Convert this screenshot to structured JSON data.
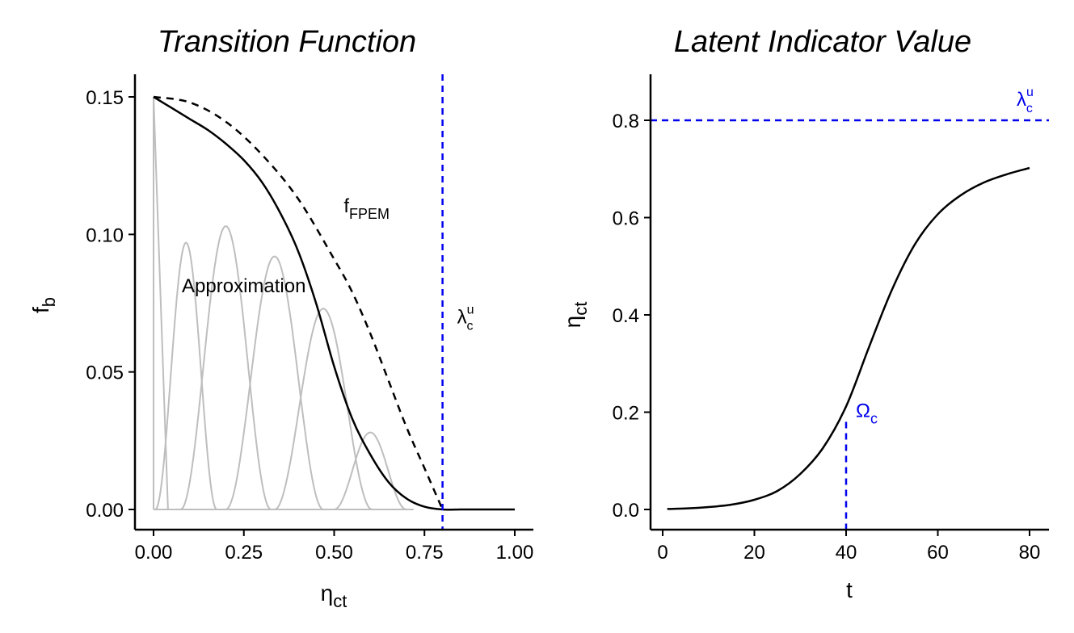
{
  "chart_data": [
    {
      "type": "line",
      "title": "Transition Function",
      "xlabel": {
        "main": "η",
        "sub": "ct"
      },
      "ylabel": {
        "main": "f",
        "sub": "b"
      },
      "xlim": [
        0,
        1
      ],
      "ylim": [
        0,
        0.15
      ],
      "xticks": [
        0,
        0.25,
        0.5,
        0.75,
        1
      ],
      "xtick_labels": [
        "0.00",
        "0.25",
        "0.50",
        "0.75",
        "1.00"
      ],
      "yticks": [
        0,
        0.05,
        0.1,
        0.15
      ],
      "ytick_labels": [
        "0.00",
        "0.05",
        "0.10",
        "0.15"
      ],
      "grid": false,
      "colors": {
        "curve": "#000000",
        "basis": "#bebebe",
        "marker": "#0000ee"
      },
      "series": [
        {
          "style": "solid",
          "x": [
            0,
            0.05,
            0.1,
            0.15,
            0.2,
            0.25,
            0.3,
            0.35,
            0.4,
            0.45,
            0.5,
            0.55,
            0.6,
            0.65,
            0.7,
            0.75,
            0.8,
            0.85,
            0.9,
            0.95,
            1.0
          ],
          "y": [
            0.15,
            0.146,
            0.142,
            0.138,
            0.133,
            0.127,
            0.119,
            0.108,
            0.094,
            0.075,
            0.052,
            0.033,
            0.02,
            0.01,
            0.004,
            0.001,
            0,
            0,
            0,
            0,
            0
          ]
        },
        {
          "style": "dashed",
          "x": [
            0,
            0.1,
            0.2,
            0.3,
            0.4,
            0.5,
            0.55,
            0.6,
            0.65,
            0.7,
            0.75,
            0.8
          ],
          "y": [
            0.15,
            0.148,
            0.141,
            0.129,
            0.113,
            0.091,
            0.079,
            0.064,
            0.047,
            0.03,
            0.015,
            0
          ]
        },
        {
          "style": "basis",
          "peaks": [
            {
              "x": 0,
              "y": 0.15
            },
            {
              "x": 0.09,
              "y": 0.097
            },
            {
              "x": 0.2,
              "y": 0.103
            },
            {
              "x": 0.335,
              "y": 0.092
            },
            {
              "x": 0.47,
              "y": 0.073
            },
            {
              "x": 0.6,
              "y": 0.028
            }
          ]
        }
      ],
      "vline": {
        "x": 0.8,
        "style": "dashed",
        "label": {
          "main": "λ",
          "sup": "u",
          "sub": "c"
        }
      },
      "annotations": [
        {
          "text": "Approximation",
          "x": 0.25,
          "y": 0.079
        },
        {
          "main": "f",
          "sub": "FPEM",
          "x": 0.54,
          "y": 0.108
        }
      ]
    },
    {
      "type": "line",
      "title": "Latent Indicator Value",
      "xlabel": {
        "main": "t",
        "sub": ""
      },
      "ylabel": {
        "main": "η",
        "sub": "ct"
      },
      "xlim": [
        0,
        80
      ],
      "ylim": [
        0,
        0.8
      ],
      "xticks": [
        0,
        20,
        40,
        60,
        80
      ],
      "xtick_labels": [
        "0",
        "20",
        "40",
        "60",
        "80"
      ],
      "yticks": [
        0,
        0.2,
        0.4,
        0.6,
        0.8
      ],
      "ytick_labels": [
        "0.0",
        "0.2",
        "0.4",
        "0.6",
        "0.8"
      ],
      "grid": false,
      "colors": {
        "curve": "#000000",
        "marker": "#0000ee"
      },
      "series": [
        {
          "style": "solid",
          "x": [
            1,
            5,
            10,
            15,
            20,
            25,
            30,
            35,
            40,
            45,
            50,
            55,
            60,
            65,
            70,
            75,
            80
          ],
          "y": [
            0.001,
            0.002,
            0.005,
            0.01,
            0.02,
            0.038,
            0.073,
            0.127,
            0.212,
            0.334,
            0.452,
            0.545,
            0.607,
            0.646,
            0.672,
            0.689,
            0.702
          ]
        }
      ],
      "hline": {
        "y": 0.8,
        "style": "dashed",
        "label": {
          "main": "λ",
          "sup": "u",
          "sub": "c"
        }
      },
      "vline": {
        "x": 40,
        "y_max": 0.18,
        "style": "dashed",
        "label": {
          "main": "Ω",
          "sub": "c"
        }
      }
    }
  ]
}
